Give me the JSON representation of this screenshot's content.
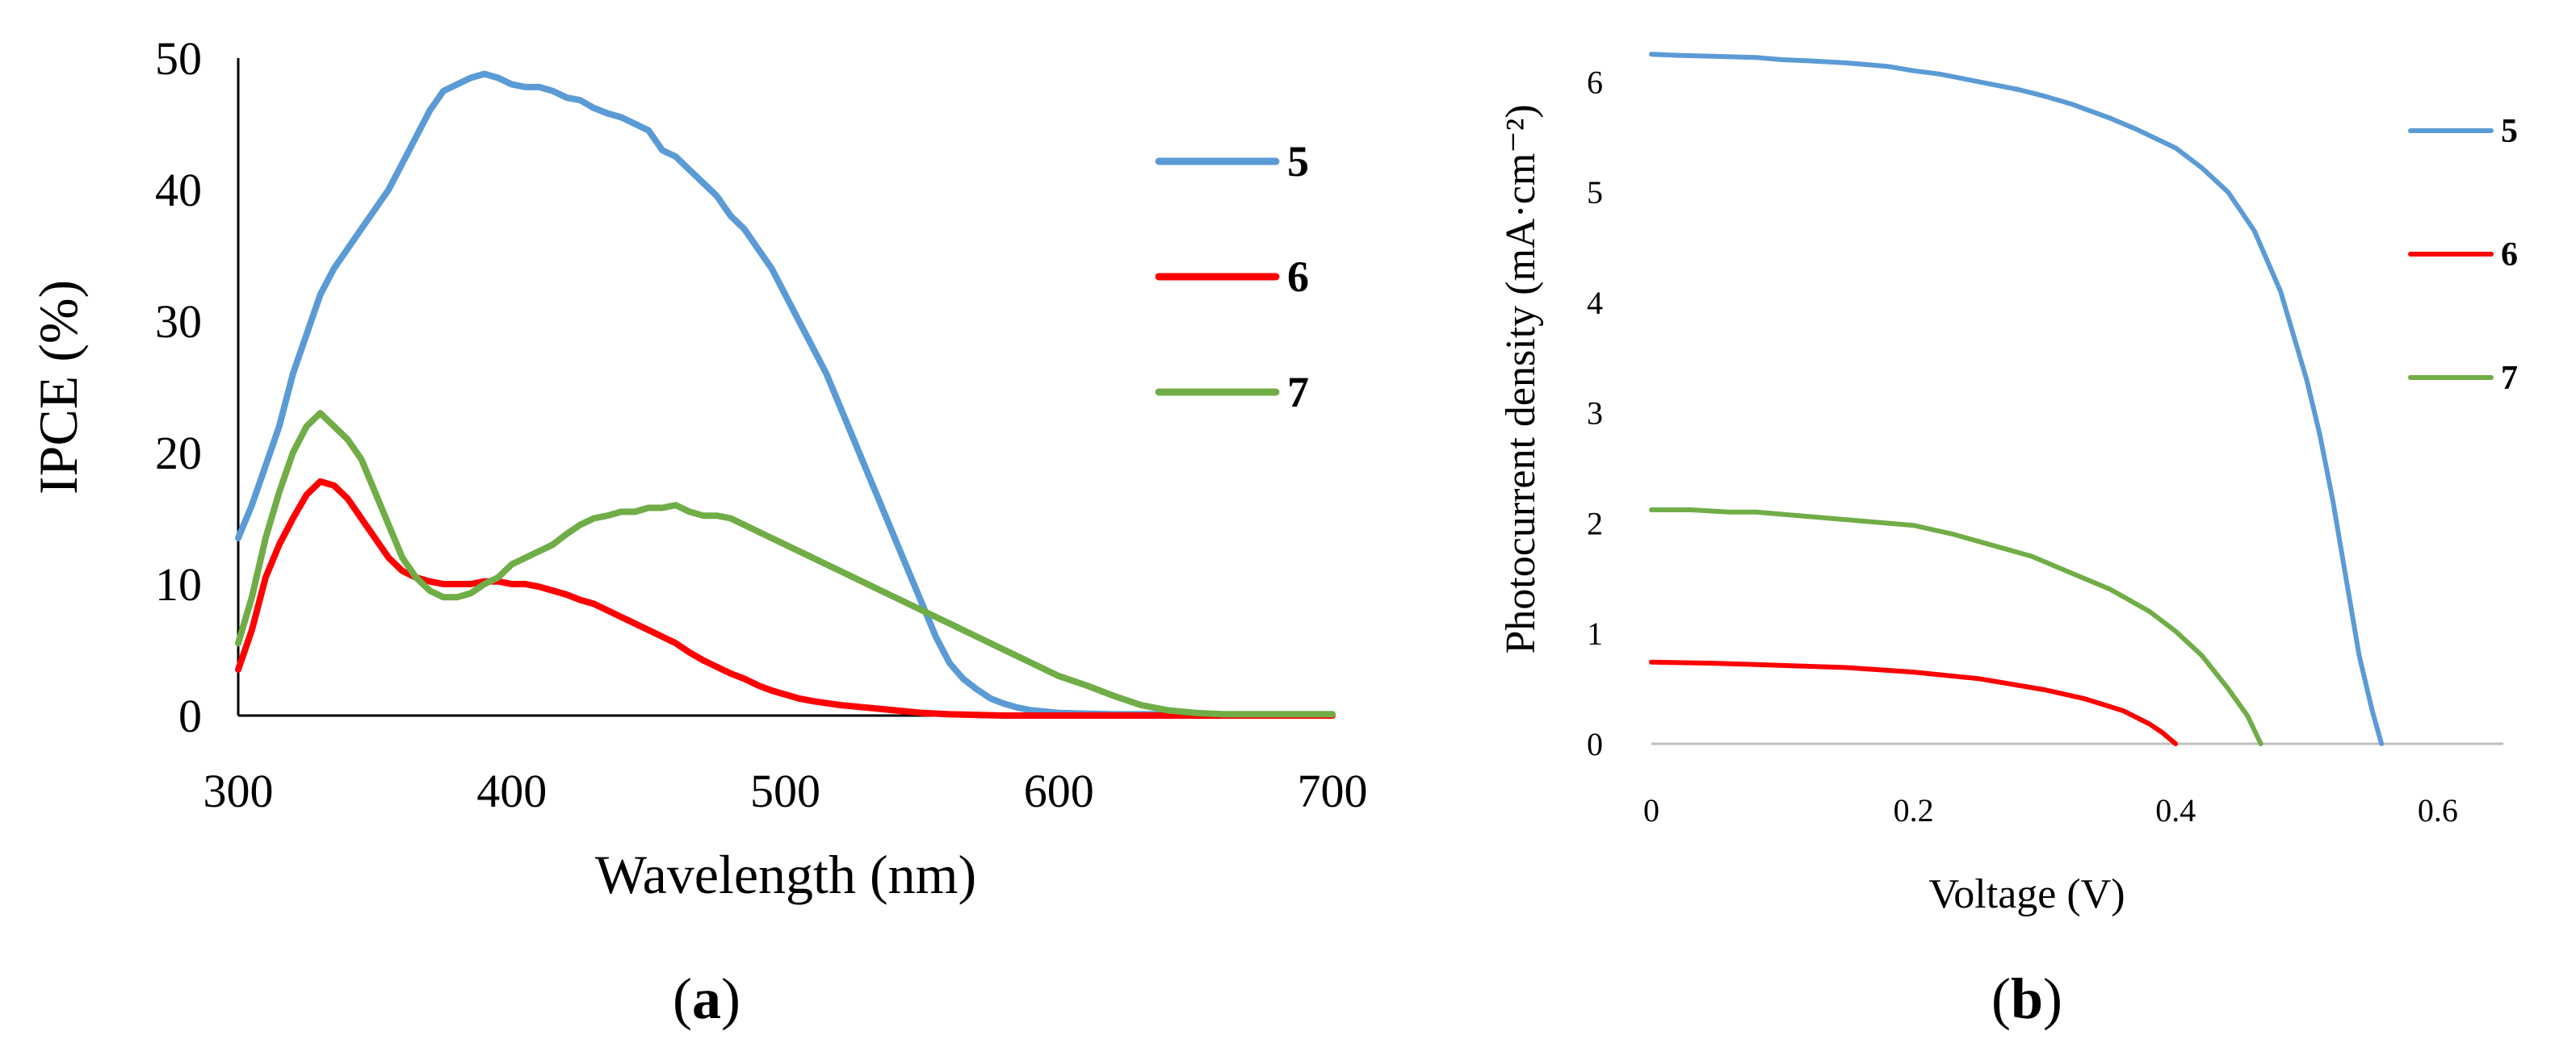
{
  "colors": {
    "s5": "#5b9bd5",
    "s6": "#ff0000",
    "s7": "#70ad47"
  },
  "chart_data": [
    {
      "type": "line",
      "panel": "(a)",
      "panel_letter": "a",
      "xlabel": "Wavelength (nm)",
      "ylabel": "IPCE (%)",
      "xlim": [
        300,
        700
      ],
      "ylim": [
        0,
        50
      ],
      "xticks": [
        "300",
        "400",
        "500",
        "600",
        "700"
      ],
      "yticks": [
        "0",
        "10",
        "20",
        "30",
        "40",
        "50"
      ],
      "legend_position": "right",
      "series": [
        {
          "name": "5",
          "color": "#5b9bd5",
          "x": [
            300,
            305,
            310,
            315,
            320,
            325,
            330,
            335,
            340,
            345,
            350,
            355,
            360,
            365,
            370,
            375,
            380,
            385,
            390,
            395,
            400,
            405,
            410,
            415,
            420,
            425,
            430,
            435,
            440,
            445,
            450,
            455,
            460,
            465,
            470,
            475,
            480,
            485,
            490,
            495,
            500,
            505,
            510,
            515,
            520,
            525,
            530,
            535,
            540,
            545,
            550,
            555,
            560,
            565,
            570,
            575,
            580,
            585,
            590,
            595,
            600,
            610,
            620,
            640,
            660,
            680,
            700
          ],
          "y": [
            13.5,
            16,
            19,
            22,
            26,
            29,
            32,
            34,
            35.5,
            37,
            38.5,
            40,
            42,
            44,
            46,
            47.5,
            48,
            48.5,
            48.8,
            48.5,
            48,
            47.8,
            47.8,
            47.5,
            47,
            46.8,
            46.2,
            45.8,
            45.5,
            45,
            44.5,
            43,
            42.5,
            41.5,
            40.5,
            39.5,
            38,
            37,
            35.5,
            34,
            32,
            30,
            28,
            26,
            23.5,
            21,
            18.5,
            16,
            13.5,
            11,
            8.5,
            6,
            4,
            2.8,
            2,
            1.3,
            0.9,
            0.6,
            0.4,
            0.3,
            0.2,
            0.15,
            0.1,
            0.1,
            0.1,
            0.1,
            0.1
          ]
        },
        {
          "name": "6",
          "color": "#ff0000",
          "x": [
            300,
            305,
            310,
            315,
            320,
            325,
            330,
            335,
            340,
            345,
            350,
            355,
            360,
            365,
            370,
            375,
            380,
            385,
            390,
            395,
            400,
            405,
            410,
            415,
            420,
            425,
            430,
            435,
            440,
            445,
            450,
            455,
            460,
            465,
            470,
            475,
            480,
            485,
            490,
            495,
            500,
            505,
            510,
            520,
            530,
            540,
            550,
            560,
            580,
            600,
            650,
            700
          ],
          "y": [
            3.5,
            6.5,
            10.5,
            13,
            15,
            16.8,
            17.8,
            17.5,
            16.5,
            15,
            13.5,
            12,
            11,
            10.5,
            10.2,
            10,
            10,
            10,
            10.2,
            10.2,
            10,
            10,
            9.8,
            9.5,
            9.2,
            8.8,
            8.5,
            8,
            7.5,
            7,
            6.5,
            6,
            5.5,
            4.8,
            4.2,
            3.7,
            3.2,
            2.8,
            2.3,
            1.9,
            1.6,
            1.3,
            1.1,
            0.8,
            0.6,
            0.4,
            0.2,
            0.1,
            0,
            0,
            0,
            0
          ]
        },
        {
          "name": "7",
          "color": "#70ad47",
          "x": [
            300,
            305,
            310,
            315,
            320,
            325,
            330,
            335,
            340,
            345,
            350,
            355,
            360,
            365,
            370,
            375,
            380,
            385,
            390,
            395,
            400,
            405,
            410,
            415,
            420,
            425,
            430,
            435,
            440,
            445,
            450,
            455,
            460,
            465,
            470,
            475,
            480,
            485,
            490,
            495,
            500,
            510,
            520,
            530,
            540,
            550,
            560,
            570,
            580,
            590,
            600,
            610,
            620,
            630,
            640,
            650,
            660,
            680,
            700
          ],
          "y": [
            5.5,
            9,
            13.5,
            17,
            20,
            22,
            23,
            22,
            21,
            19.5,
            17,
            14.5,
            12,
            10.5,
            9.5,
            9,
            9,
            9.3,
            10,
            10.5,
            11.5,
            12,
            12.5,
            13,
            13.8,
            14.5,
            15,
            15.2,
            15.5,
            15.5,
            15.8,
            15.8,
            16,
            15.5,
            15.2,
            15.2,
            15,
            14.5,
            14,
            13.5,
            13,
            12,
            11,
            10,
            9,
            8,
            7,
            6,
            5,
            4,
            3,
            2.3,
            1.5,
            0.8,
            0.4,
            0.2,
            0.1,
            0.1,
            0.1
          ]
        }
      ]
    },
    {
      "type": "line",
      "panel": "(b)",
      "panel_letter": "b",
      "xlabel": "Voltage (V)",
      "ylabel": "Photocurrent density (mA·cm⁻²)",
      "xlim": [
        0,
        0.65
      ],
      "ylim": [
        0,
        6.5
      ],
      "xticks": [
        "0",
        "0.2",
        "0.4",
        "0.6"
      ],
      "yticks": [
        "0",
        "1",
        "2",
        "3",
        "4",
        "5",
        "6"
      ],
      "legend_position": "right",
      "series": [
        {
          "name": "5",
          "color": "#5b9bd5",
          "x": [
            0,
            0.02,
            0.05,
            0.08,
            0.1,
            0.12,
            0.15,
            0.18,
            0.2,
            0.22,
            0.25,
            0.28,
            0.3,
            0.32,
            0.35,
            0.37,
            0.4,
            0.42,
            0.44,
            0.46,
            0.48,
            0.5,
            0.51,
            0.52,
            0.53,
            0.54,
            0.55,
            0.557
          ],
          "y": [
            6.25,
            6.24,
            6.23,
            6.22,
            6.2,
            6.19,
            6.17,
            6.14,
            6.1,
            6.07,
            6.0,
            5.93,
            5.87,
            5.8,
            5.67,
            5.57,
            5.4,
            5.22,
            5.0,
            4.65,
            4.1,
            3.3,
            2.8,
            2.2,
            1.5,
            0.8,
            0.3,
            0
          ]
        },
        {
          "name": "6",
          "color": "#ff0000",
          "x": [
            0,
            0.05,
            0.1,
            0.15,
            0.2,
            0.25,
            0.3,
            0.33,
            0.36,
            0.38,
            0.39,
            0.4
          ],
          "y": [
            0.74,
            0.73,
            0.71,
            0.69,
            0.65,
            0.59,
            0.49,
            0.41,
            0.3,
            0.18,
            0.1,
            0
          ]
        },
        {
          "name": "7",
          "color": "#70ad47",
          "x": [
            0,
            0.03,
            0.06,
            0.08,
            0.1,
            0.13,
            0.16,
            0.2,
            0.23,
            0.26,
            0.29,
            0.32,
            0.35,
            0.38,
            0.4,
            0.42,
            0.44,
            0.455,
            0.465
          ],
          "y": [
            2.12,
            2.12,
            2.1,
            2.1,
            2.08,
            2.05,
            2.02,
            1.98,
            1.9,
            1.8,
            1.7,
            1.55,
            1.4,
            1.2,
            1.02,
            0.8,
            0.5,
            0.25,
            0
          ]
        }
      ]
    }
  ]
}
